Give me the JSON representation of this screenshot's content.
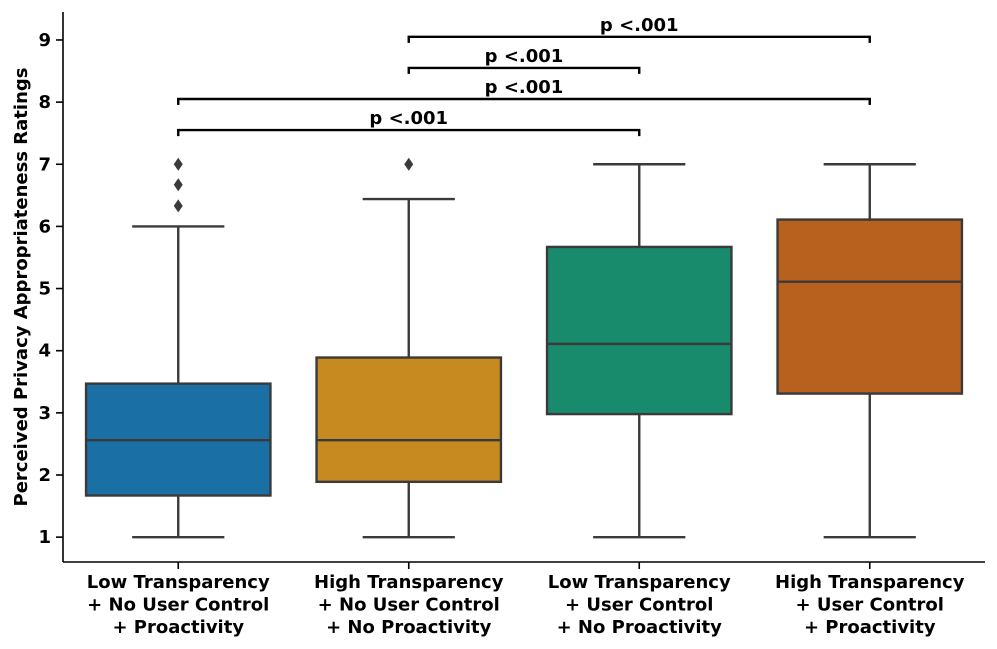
{
  "chart_data": {
    "type": "box",
    "ylabel": "Perceived Privacy Appropriateness Ratings",
    "xlabel": "",
    "ylim": [
      0.6,
      9.45
    ],
    "yticks": [
      1,
      2,
      3,
      4,
      5,
      6,
      7,
      8,
      9
    ],
    "grid": false,
    "categories": [
      [
        "Low Transparency",
        "+ No User Control",
        "+ Proactivity"
      ],
      [
        "High Transparency",
        "+ No User Control",
        "+ No Proactivity"
      ],
      [
        "Low Transparency",
        "+ User Control",
        "+ No Proactivity"
      ],
      [
        "High Transparency",
        "+ User Control",
        "+ Proactivity"
      ]
    ],
    "boxes": [
      {
        "whisker_low": 1,
        "q1": 1.67,
        "median": 2.56,
        "q3": 3.47,
        "whisker_high": 6.0,
        "outliers": [
          6.33,
          6.67,
          7.0
        ],
        "color": "#1a6fa4"
      },
      {
        "whisker_low": 1,
        "q1": 1.89,
        "median": 2.56,
        "q3": 3.89,
        "whisker_high": 6.44,
        "outliers": [
          7.0
        ],
        "color": "#c68a21"
      },
      {
        "whisker_low": 1,
        "q1": 2.98,
        "median": 4.11,
        "q3": 5.67,
        "whisker_high": 7.0,
        "outliers": [],
        "color": "#178b6c"
      },
      {
        "whisker_low": 1,
        "q1": 3.31,
        "median": 5.11,
        "q3": 6.11,
        "whisker_high": 7.0,
        "outliers": [],
        "color": "#b8611f"
      }
    ],
    "significance": [
      {
        "from": 0,
        "to": 2,
        "y": 7.55,
        "label": "p <.001"
      },
      {
        "from": 0,
        "to": 3,
        "y": 8.05,
        "label": "p <.001"
      },
      {
        "from": 1,
        "to": 2,
        "y": 8.55,
        "label": "p <.001"
      },
      {
        "from": 1,
        "to": 3,
        "y": 9.05,
        "label": "p <.001"
      }
    ]
  }
}
